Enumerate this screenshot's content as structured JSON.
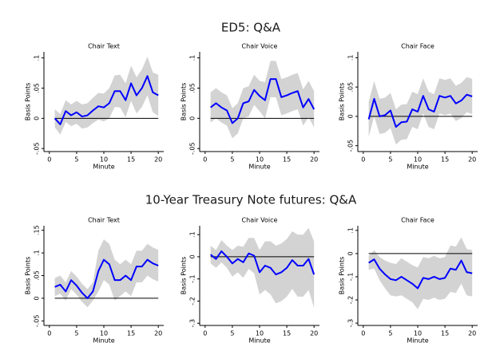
{
  "section_titles": [
    "ED5: Q&A",
    "10-Year Treasury Note futures: Q&A"
  ],
  "chart_data": [
    {
      "type": "line",
      "title": "Chair Text",
      "xlabel": "Minute",
      "ylabel": "Basis Points",
      "x": [
        1,
        2,
        3,
        4,
        5,
        6,
        7,
        8,
        9,
        10,
        11,
        12,
        13,
        14,
        15,
        16,
        17,
        18,
        19,
        20
      ],
      "xlim": [
        -1,
        21
      ],
      "xticks": [
        0,
        5,
        10,
        15,
        20
      ],
      "ylim": [
        -0.055,
        0.11
      ],
      "yticks": [
        {
          "value": -0.05,
          "label": "-.05"
        },
        0,
        {
          "value": 0.05,
          "label": ".05"
        },
        {
          "value": 0.1,
          "label": ".1"
        }
      ],
      "hline": 0,
      "hline_color": "#000000",
      "band": {
        "color": "#d3d3d3",
        "upper": [
          0.015,
          0.007,
          0.03,
          0.023,
          0.029,
          0.023,
          0.025,
          0.034,
          0.042,
          0.041,
          0.05,
          0.071,
          0.072,
          0.058,
          0.087,
          0.068,
          0.081,
          0.102,
          0.076,
          0.072
        ],
        "lower": [
          -0.015,
          -0.027,
          -0.006,
          -0.013,
          -0.009,
          -0.017,
          -0.015,
          -0.008,
          -0.002,
          -0.005,
          0,
          0.019,
          0.018,
          0.002,
          0.029,
          0.008,
          0.019,
          0.038,
          0.01,
          0.004
        ]
      },
      "series": [
        {
          "color": "#0000ff",
          "values": [
            0,
            -0.01,
            0.012,
            0.005,
            0.01,
            0.003,
            0.005,
            0.013,
            0.02,
            0.018,
            0.025,
            0.045,
            0.045,
            0.03,
            0.058,
            0.038,
            0.05,
            0.07,
            0.043,
            0.038
          ]
        }
      ]
    },
    {
      "type": "line",
      "title": "Chair Voice",
      "xlabel": "Minute",
      "ylabel": "Basis Points",
      "x": [
        1,
        2,
        3,
        4,
        5,
        6,
        7,
        8,
        9,
        10,
        11,
        12,
        13,
        14,
        15,
        16,
        17,
        18,
        19,
        20
      ],
      "xlim": [
        -1,
        21
      ],
      "xticks": [
        0,
        5,
        10,
        15,
        20
      ],
      "ylim": [
        -0.055,
        0.11
      ],
      "yticks": [
        {
          "value": -0.05,
          "label": "-.05"
        },
        0,
        {
          "value": 0.05,
          "label": ".05"
        },
        {
          "value": 0.1,
          "label": ".1"
        }
      ],
      "hline": 0,
      "hline_color": "#000000",
      "band": {
        "color": "#d3d3d3",
        "upper": [
          0.043,
          0.05,
          0.043,
          0.038,
          0.017,
          0.025,
          0.05,
          0.053,
          0.072,
          0.062,
          0.06,
          0.095,
          0.095,
          0.065,
          0.068,
          0.072,
          0.075,
          0.048,
          0.062,
          0.045
        ],
        "lower": [
          -0.007,
          0,
          -0.007,
          -0.012,
          -0.033,
          -0.025,
          0,
          0.003,
          0.022,
          0.012,
          0,
          0.035,
          0.035,
          0.005,
          0.008,
          0.012,
          0.015,
          -0.012,
          0.002,
          -0.015
        ]
      },
      "series": [
        {
          "color": "#0000ff",
          "values": [
            0.018,
            0.025,
            0.018,
            0.013,
            -0.008,
            0,
            0.025,
            0.028,
            0.047,
            0.037,
            0.03,
            0.065,
            0.065,
            0.035,
            0.038,
            0.042,
            0.045,
            0.018,
            0.032,
            0.015
          ]
        }
      ]
    },
    {
      "type": "line",
      "title": "Chair Face",
      "xlabel": "Minute",
      "ylabel": "Basis Points",
      "x": [
        1,
        2,
        3,
        4,
        5,
        6,
        7,
        8,
        9,
        10,
        11,
        12,
        13,
        14,
        15,
        16,
        17,
        18,
        19,
        20
      ],
      "xlim": [
        -1,
        21
      ],
      "xticks": [
        0,
        5,
        10,
        15,
        20
      ],
      "ylim": [
        -0.06,
        0.11
      ],
      "yticks": [
        {
          "value": -0.05,
          "label": "-.05"
        },
        0,
        {
          "value": 0.05,
          "label": ".05"
        },
        {
          "value": 0.1,
          "label": ".1"
        }
      ],
      "hline": 0,
      "hline_color": "#000000",
      "band": {
        "color": "#d3d3d3",
        "upper": [
          0.025,
          0.06,
          0.03,
          0.032,
          0.04,
          0.012,
          0.02,
          0.021,
          0.042,
          0.038,
          0.065,
          0.042,
          0.038,
          0.065,
          0.062,
          0.065,
          0.052,
          0.057,
          0.067,
          0.064
        ],
        "lower": [
          -0.035,
          0,
          -0.03,
          -0.028,
          -0.02,
          -0.048,
          -0.04,
          -0.039,
          -0.018,
          -0.022,
          0.005,
          -0.018,
          -0.022,
          0.005,
          0.002,
          0.005,
          -0.008,
          -0.003,
          0.007,
          0.004
        ]
      },
      "series": [
        {
          "color": "#0000ff",
          "values": [
            -0.005,
            0.03,
            0,
            0.002,
            0.01,
            -0.018,
            -0.01,
            -0.009,
            0.012,
            0.008,
            0.035,
            0.012,
            0.008,
            0.035,
            0.032,
            0.035,
            0.022,
            0.027,
            0.037,
            0.034
          ]
        }
      ]
    },
    {
      "type": "line",
      "title": "Chair Text",
      "xlabel": "Minute",
      "ylabel": "Basis Points",
      "x": [
        1,
        2,
        3,
        4,
        5,
        6,
        7,
        8,
        9,
        10,
        11,
        12,
        13,
        14,
        15,
        16,
        17,
        18,
        19,
        20
      ],
      "xlim": [
        -1,
        21
      ],
      "xticks": [
        0,
        5,
        10,
        15,
        20
      ],
      "ylim": [
        -0.06,
        0.16
      ],
      "yticks": [
        {
          "value": -0.05,
          "label": "-.05"
        },
        0,
        {
          "value": 0.05,
          "label": ".05"
        },
        {
          "value": 0.1,
          "label": ".1"
        },
        {
          "value": 0.15,
          "label": ".15"
        }
      ],
      "hline": 0,
      "hline_color": "#000000",
      "band": {
        "color": "#d3d3d3",
        "upper": [
          0.045,
          0.05,
          0.035,
          0.06,
          0.048,
          0.032,
          0.02,
          0.035,
          0.105,
          0.13,
          0.12,
          0.085,
          0.075,
          0.085,
          0.075,
          0.105,
          0.105,
          0.12,
          0.112,
          0.107
        ],
        "lower": [
          0.005,
          0.01,
          -0.005,
          0.02,
          0.008,
          -0.008,
          -0.02,
          -0.005,
          0.015,
          0.04,
          0.03,
          -0.005,
          0.005,
          0.015,
          0.005,
          0.035,
          0.035,
          0.05,
          0.042,
          0.037
        ]
      },
      "series": [
        {
          "color": "#0000ff",
          "values": [
            0.025,
            0.03,
            0.015,
            0.04,
            0.028,
            0.012,
            0,
            0.015,
            0.06,
            0.085,
            0.075,
            0.04,
            0.04,
            0.05,
            0.04,
            0.07,
            0.07,
            0.085,
            0.077,
            0.072
          ]
        }
      ]
    },
    {
      "type": "line",
      "title": "Chair Voice",
      "xlabel": "Minute",
      "ylabel": "Basis Points",
      "x": [
        1,
        2,
        3,
        4,
        5,
        6,
        7,
        8,
        9,
        10,
        11,
        12,
        13,
        14,
        15,
        16,
        17,
        18,
        19,
        20
      ],
      "xlim": [
        -1,
        21
      ],
      "xticks": [
        0,
        5,
        10,
        15,
        20
      ],
      "ylim": [
        -0.31,
        0.14
      ],
      "yticks": [
        {
          "value": -0.3,
          "label": "-.3"
        },
        {
          "value": -0.2,
          "label": "-.2"
        },
        {
          "value": -0.1,
          "label": "-.1"
        },
        0,
        {
          "value": 0.1,
          "label": ".1"
        }
      ],
      "hline": 0,
      "hline_color": "#000000",
      "band": {
        "color": "#d3d3d3",
        "upper": [
          0.05,
          0.03,
          0.075,
          0.05,
          0.03,
          0.05,
          0.045,
          0.085,
          0.085,
          0.03,
          0.07,
          0.07,
          0.05,
          0.06,
          0.08,
          0.115,
          0.1,
          0.1,
          0.13,
          0.07
        ],
        "lower": [
          -0.03,
          -0.05,
          -0.025,
          -0.05,
          -0.09,
          -0.07,
          -0.095,
          -0.055,
          -0.075,
          -0.17,
          -0.15,
          -0.17,
          -0.21,
          -0.2,
          -0.18,
          -0.145,
          -0.18,
          -0.18,
          -0.15,
          -0.23
        ]
      },
      "series": [
        {
          "color": "#0000ff",
          "values": [
            0.01,
            -0.01,
            0.025,
            0,
            -0.03,
            -0.01,
            -0.025,
            0.015,
            0.005,
            -0.07,
            -0.04,
            -0.05,
            -0.08,
            -0.07,
            -0.05,
            -0.015,
            -0.04,
            -0.04,
            -0.01,
            -0.08
          ]
        }
      ]
    },
    {
      "type": "line",
      "title": "Chair Face",
      "xlabel": "Minute",
      "ylabel": "Basis Points",
      "x": [
        1,
        2,
        3,
        4,
        5,
        6,
        7,
        8,
        9,
        10,
        11,
        12,
        13,
        14,
        15,
        16,
        17,
        18,
        19,
        20
      ],
      "xlim": [
        -1,
        21
      ],
      "xticks": [
        0,
        5,
        10,
        15,
        20
      ],
      "ylim": [
        -0.31,
        0.12
      ],
      "yticks": [
        {
          "value": -0.3,
          "label": "-.3"
        },
        {
          "value": -0.2,
          "label": "-.2"
        },
        {
          "value": -0.1,
          "label": "-.1"
        },
        0,
        {
          "value": 0.1,
          "label": ".1"
        }
      ],
      "hline": 0,
      "hline_color": "#000000",
      "band": {
        "color": "#d3d3d3",
        "upper": [
          -0.01,
          0.015,
          -0.015,
          -0.03,
          -0.04,
          -0.045,
          -0.02,
          -0.035,
          -0.05,
          -0.06,
          -0.015,
          -0.02,
          -0.01,
          -0.02,
          -0.015,
          0.035,
          0.03,
          0.07,
          0.02,
          0.015
        ],
        "lower": [
          -0.07,
          -0.065,
          -0.115,
          -0.15,
          -0.18,
          -0.185,
          -0.18,
          -0.195,
          -0.21,
          -0.24,
          -0.195,
          -0.2,
          -0.19,
          -0.2,
          -0.195,
          -0.165,
          -0.17,
          -0.13,
          -0.18,
          -0.185
        ]
      },
      "series": [
        {
          "color": "#0000ff",
          "values": [
            -0.04,
            -0.025,
            -0.065,
            -0.09,
            -0.11,
            -0.115,
            -0.1,
            -0.115,
            -0.13,
            -0.15,
            -0.105,
            -0.11,
            -0.1,
            -0.11,
            -0.105,
            -0.065,
            -0.07,
            -0.03,
            -0.08,
            -0.085
          ]
        }
      ]
    }
  ]
}
